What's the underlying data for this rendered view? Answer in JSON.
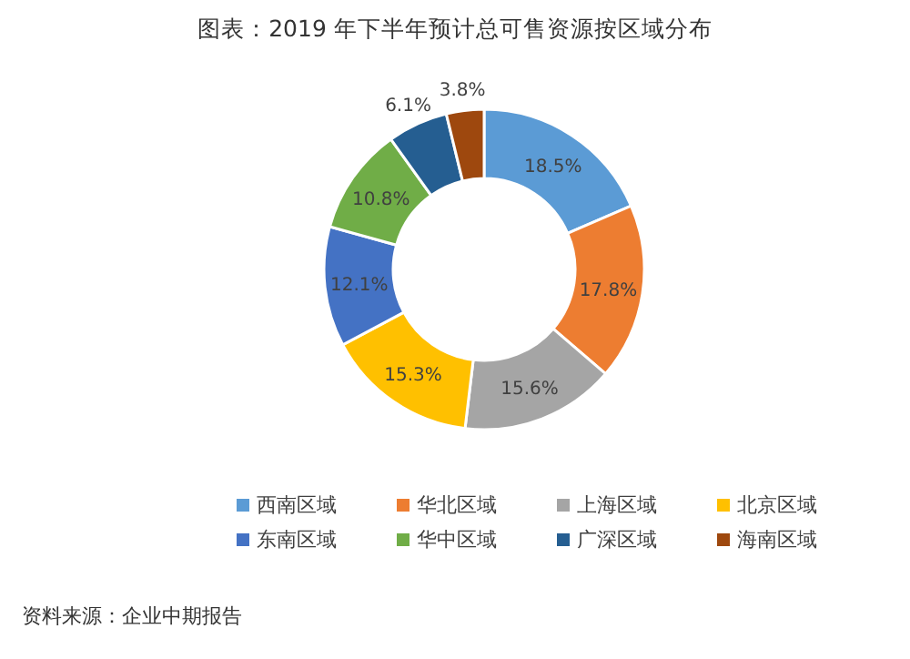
{
  "chart_data": {
    "type": "donut",
    "title": "图表：2019 年下半年预计总可售资源按区域分布",
    "categories": [
      "西南区域",
      "华北区域",
      "上海区域",
      "北京区域",
      "东南区域",
      "华中区域",
      "广深区域",
      "海南区域"
    ],
    "values": [
      18.5,
      17.8,
      15.6,
      15.3,
      12.1,
      10.8,
      6.1,
      3.8
    ],
    "value_labels": [
      "18.5%",
      "17.8%",
      "15.6%",
      "15.3%",
      "12.1%",
      "10.8%",
      "6.1%",
      "3.8%"
    ],
    "colors": [
      "#5b9bd5",
      "#ed7d31",
      "#a5a5a5",
      "#ffc000",
      "#4472c4",
      "#70ad47",
      "#255e91",
      "#9e480e"
    ],
    "legend": "bottom",
    "annotations": [
      "资料来源：企业中期报告"
    ]
  }
}
